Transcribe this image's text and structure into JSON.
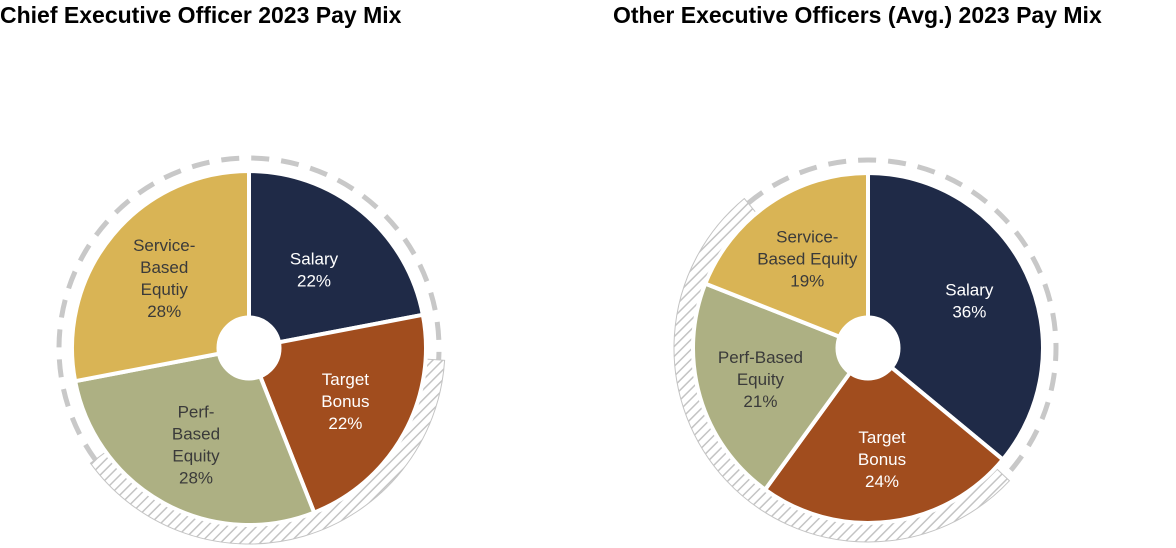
{
  "chart_data": [
    {
      "type": "pie",
      "title": "Chief Executive Officer 2023 Pay Mix",
      "slices": [
        {
          "label_lines": [
            "Salary",
            "22%"
          ],
          "value": 22,
          "color": "#1f2a47",
          "text_color": "#ffffff"
        },
        {
          "label_lines": [
            "Target",
            "Bonus",
            "22%"
          ],
          "value": 22,
          "color": "#a14d1e",
          "text_color": "#ffffff"
        },
        {
          "label_lines": [
            "Perf-",
            "Based",
            "Equity",
            "28%"
          ],
          "value": 28,
          "color": "#adb083",
          "text_color": "#3a3a3a"
        },
        {
          "label_lines": [
            "Service-",
            "Based",
            "Equtiy",
            "28%"
          ],
          "value": 28,
          "color": "#d9b455",
          "text_color": "#3a3a3a"
        }
      ],
      "ring": {
        "dashed_share": 0.61,
        "hatched_share": 0.39,
        "dash_color": "#c8c8c8"
      }
    },
    {
      "type": "pie",
      "title": "Other Executive Officers (Avg.) 2023 Pay Mix",
      "slices": [
        {
          "label_lines": [
            "Salary",
            "36%"
          ],
          "value": 36,
          "color": "#1f2a47",
          "text_color": "#ffffff"
        },
        {
          "label_lines": [
            "Target",
            "Bonus",
            "24%"
          ],
          "value": 24,
          "color": "#a14d1e",
          "text_color": "#ffffff"
        },
        {
          "label_lines": [
            "Perf-Based",
            "Equity",
            "21%"
          ],
          "value": 21,
          "color": "#adb083",
          "text_color": "#3a3a3a"
        },
        {
          "label_lines": [
            "Service-",
            "Based Equity",
            "19%"
          ],
          "value": 19,
          "color": "#d9b455",
          "text_color": "#3a3a3a"
        }
      ],
      "ring": {
        "dashed_share": 0.48,
        "hatched_share": 0.52,
        "dash_color": "#c8c8c8"
      }
    }
  ]
}
